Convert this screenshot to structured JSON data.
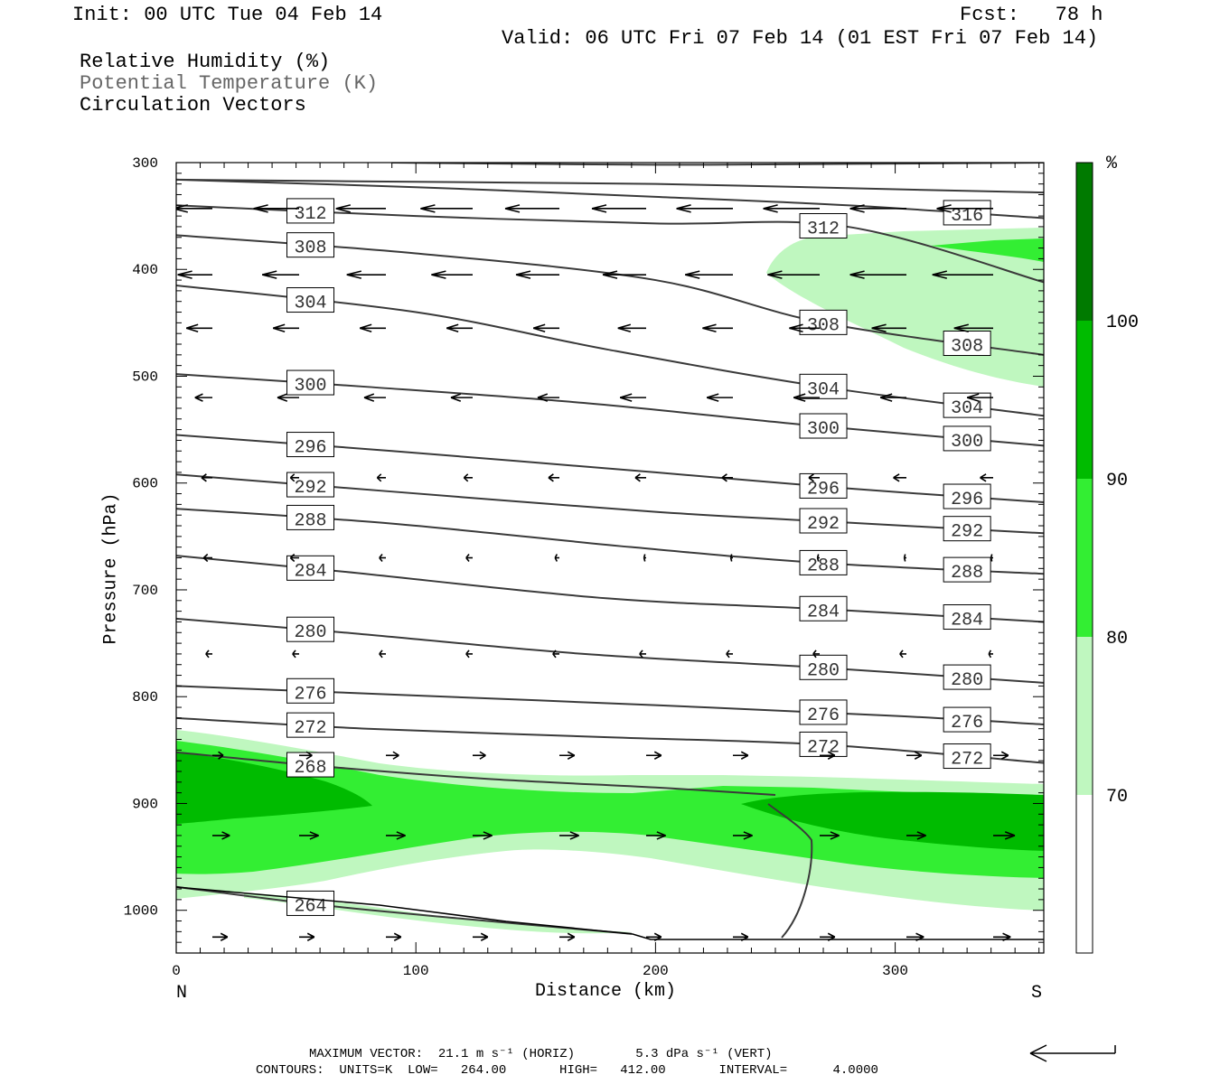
{
  "header": {
    "init": "Init: 00 UTC Tue 04 Feb 14",
    "fcst": "Fcst:   78 h",
    "valid": "Valid: 06 UTC Fri 07 Feb 14 (01 EST Fri 07 Feb 14)"
  },
  "legend_lines": {
    "rh": "Relative Humidity (%)",
    "theta": "Potential Temperature (K)",
    "vectors": "Circulation Vectors"
  },
  "colors": {
    "rh_70_80": "#bff7bf",
    "rh_80_90": "#33ee33",
    "rh_90_100": "#00bb00",
    "rh_100_plus": "#007a00",
    "contour": "#3a3a3a",
    "frame": "#000000"
  },
  "chart_data": {
    "type": "cross-section",
    "xlabel": "Distance (km)",
    "ylabel": "Pressure (hPa)",
    "xlim": [
      0,
      362
    ],
    "ylim": [
      1040,
      300
    ],
    "x_ticks": [
      0,
      100,
      200,
      300
    ],
    "y_ticks": [
      300,
      400,
      500,
      600,
      700,
      800,
      900,
      1000
    ],
    "x_end_labels": {
      "left": "N",
      "right": "S"
    },
    "colorbar": {
      "unit": "%",
      "levels": [
        70,
        80,
        90,
        100
      ]
    },
    "theta_contours": [
      {
        "label": "264",
        "points": [
          [
            0,
            978
          ],
          [
            60,
            995
          ],
          [
            120,
            1008
          ],
          [
            190,
            1022
          ]
        ]
      },
      {
        "label": "268",
        "points": [
          [
            0,
            852
          ],
          [
            60,
            865
          ],
          [
            130,
            877
          ],
          [
            200,
            885
          ],
          [
            250,
            892
          ]
        ]
      },
      {
        "label": "272",
        "points": [
          [
            0,
            820
          ],
          [
            80,
            830
          ],
          [
            180,
            838
          ],
          [
            270,
            845
          ],
          [
            362,
            862
          ]
        ]
      },
      {
        "label": "276",
        "points": [
          [
            0,
            790
          ],
          [
            90,
            798
          ],
          [
            200,
            808
          ],
          [
            300,
            818
          ],
          [
            362,
            826
          ]
        ]
      },
      {
        "label": "280",
        "points": [
          [
            0,
            727
          ],
          [
            70,
            740
          ],
          [
            170,
            760
          ],
          [
            270,
            773
          ],
          [
            362,
            787
          ]
        ]
      },
      {
        "label": "284",
        "points": [
          [
            0,
            668
          ],
          [
            70,
            683
          ],
          [
            180,
            708
          ],
          [
            270,
            718
          ],
          [
            362,
            730
          ]
        ]
      },
      {
        "label": "288",
        "points": [
          [
            0,
            624
          ],
          [
            90,
            638
          ],
          [
            190,
            660
          ],
          [
            270,
            675
          ],
          [
            362,
            685
          ]
        ]
      },
      {
        "label": "292",
        "points": [
          [
            0,
            592
          ],
          [
            90,
            608
          ],
          [
            200,
            627
          ],
          [
            280,
            637
          ],
          [
            362,
            647
          ]
        ]
      },
      {
        "label": "296",
        "points": [
          [
            0,
            555
          ],
          [
            90,
            570
          ],
          [
            200,
            590
          ],
          [
            280,
            605
          ],
          [
            362,
            618
          ]
        ]
      },
      {
        "label": "300",
        "points": [
          [
            0,
            498
          ],
          [
            80,
            510
          ],
          [
            170,
            525
          ],
          [
            260,
            545
          ],
          [
            362,
            565
          ]
        ]
      },
      {
        "label": "304",
        "points": [
          [
            0,
            415
          ],
          [
            100,
            440
          ],
          [
            180,
            475
          ],
          [
            270,
            510
          ],
          [
            362,
            537
          ]
        ]
      },
      {
        "label": "308",
        "points": [
          [
            0,
            368
          ],
          [
            100,
            385
          ],
          [
            200,
            410
          ],
          [
            270,
            450
          ],
          [
            362,
            480
          ]
        ]
      },
      {
        "label": "312",
        "points": [
          [
            0,
            340
          ],
          [
            100,
            350
          ],
          [
            200,
            357
          ],
          [
            280,
            360
          ],
          [
            362,
            412
          ]
        ]
      },
      {
        "label": "316",
        "points": [
          [
            0,
            316
          ],
          [
            100,
            323
          ],
          [
            200,
            332
          ],
          [
            280,
            340
          ],
          [
            362,
            352
          ]
        ]
      },
      {
        "label": "",
        "points": [
          [
            0,
            316
          ],
          [
            100,
            318
          ],
          [
            200,
            320
          ],
          [
            300,
            325
          ],
          [
            362,
            328
          ]
        ]
      },
      {
        "label": "",
        "points": [
          [
            90,
            300
          ],
          [
            200,
            302
          ],
          [
            300,
            301
          ],
          [
            362,
            300
          ]
        ]
      }
    ],
    "vector_rows": [
      {
        "p": 343,
        "u": [
          -18,
          -21,
          -23,
          -24,
          -25,
          -25,
          -26,
          -26,
          -26,
          -26
        ]
      },
      {
        "p": 405,
        "u": [
          -16,
          -17,
          -18,
          -19,
          -20,
          -20,
          -22,
          -24,
          -26,
          -28
        ]
      },
      {
        "p": 455,
        "u": [
          -12,
          -12,
          -12,
          -12,
          -12,
          -13,
          -14,
          -14,
          -16,
          -18
        ]
      },
      {
        "p": 520,
        "u": [
          -8,
          -10,
          -10,
          -10,
          -10,
          -12,
          -12,
          -12,
          -12,
          -12
        ]
      },
      {
        "p": 595,
        "u": [
          -5,
          -4,
          -4,
          -4,
          -5,
          -5,
          -5,
          -5,
          -6,
          -6
        ]
      },
      {
        "p": 670,
        "u": [
          -4,
          -4,
          -3,
          -3,
          -2,
          -1,
          -1,
          -1,
          -1,
          -1
        ]
      },
      {
        "p": 760,
        "u": [
          -3,
          -3,
          -3,
          -3,
          -3,
          -3,
          -3,
          -3,
          -3,
          -2
        ]
      },
      {
        "p": 855,
        "u": [
          5,
          6,
          6,
          6,
          7,
          7,
          7,
          7,
          7,
          7
        ]
      },
      {
        "p": 930,
        "u": [
          8,
          9,
          9,
          9,
          9,
          9,
          9,
          9,
          9,
          10
        ]
      },
      {
        "p": 1025,
        "u": [
          7,
          7,
          7,
          7,
          7,
          7,
          7,
          7,
          8,
          8
        ]
      }
    ]
  },
  "footer": {
    "max_vector": "MAXIMUM VECTOR:  21.1 m s⁻¹ (HORIZ)        5.3 dPa s⁻¹ (VERT)",
    "contours": "CONTOURS:  UNITS=K  LOW=   264.00       HIGH=   412.00       INTERVAL=      4.0000"
  }
}
